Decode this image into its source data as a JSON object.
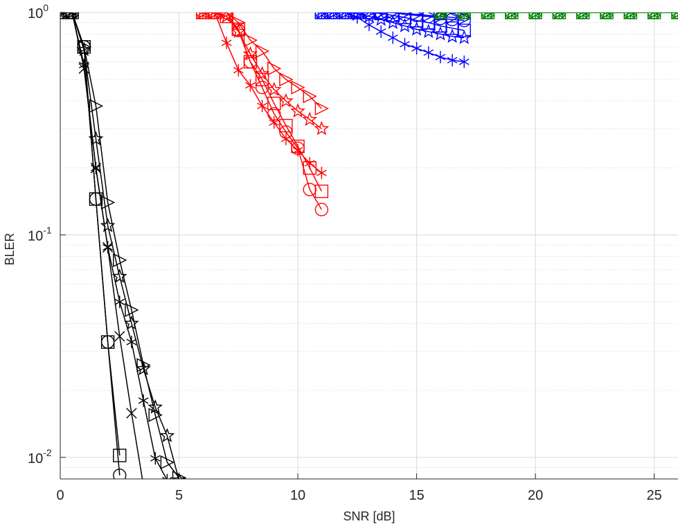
{
  "chart_data": {
    "type": "line",
    "xlabel": "SNR [dB]",
    "ylabel": "BLER",
    "xscale": "linear",
    "yscale": "log",
    "xlim": [
      0,
      26
    ],
    "ylim": [
      0.008,
      1
    ],
    "xticks": [
      0,
      5,
      10,
      15,
      20,
      25
    ],
    "xtick_labels": [
      "0",
      "5",
      "10",
      "15",
      "20",
      "25"
    ],
    "yticks": [
      0.01,
      0.1,
      1
    ],
    "ytick_labels": [
      {
        "base": "10",
        "exp": "-2"
      },
      {
        "base": "10",
        "exp": "-1"
      },
      {
        "base": "10",
        "exp": "0"
      }
    ],
    "grid": true,
    "minor_grid": true,
    "colors": {
      "black": "#000000",
      "red": "#ff0000",
      "blue": "#0000ff",
      "green": "#008000",
      "grid": "#d9d9d9"
    },
    "series": [
      {
        "color": "black",
        "marker": "circle",
        "x": [
          0,
          0.5,
          1,
          1.5,
          2,
          2.5
        ],
        "y": [
          1,
          1,
          0.7,
          0.145,
          0.033,
          0.0083
        ]
      },
      {
        "color": "black",
        "marker": "square",
        "x": [
          0,
          0.5,
          1,
          1.5,
          2,
          2.5
        ],
        "y": [
          1,
          1,
          0.7,
          0.145,
          0.033,
          0.0102
        ]
      },
      {
        "color": "black",
        "marker": "x",
        "x": [
          0,
          0.5,
          1,
          1.5,
          2,
          2.5,
          3,
          3.5
        ],
        "y": [
          1,
          1,
          0.56,
          0.2,
          0.088,
          0.035,
          0.0158,
          0.0075
        ]
      },
      {
        "color": "black",
        "marker": "asterisk",
        "x": [
          0,
          0.5,
          1,
          1.5,
          2,
          2.5,
          3,
          3.5,
          4,
          4.5
        ],
        "y": [
          1,
          1,
          0.58,
          0.2,
          0.088,
          0.05,
          0.033,
          0.018,
          0.0099,
          0.0079
        ]
      },
      {
        "color": "black",
        "marker": "triangle-right",
        "x": [
          0,
          0.5,
          1,
          1.5,
          2,
          2.5,
          3,
          3.5,
          4,
          4.5,
          5
        ],
        "y": [
          1,
          1,
          0.7,
          0.38,
          0.14,
          0.077,
          0.046,
          0.026,
          0.0155,
          0.0095,
          0.0081
        ]
      },
      {
        "color": "black",
        "marker": "star",
        "x": [
          0,
          0.5,
          1,
          1.5,
          2,
          2.5,
          3,
          3.5,
          4,
          4.5,
          5
        ],
        "y": [
          1,
          1,
          0.68,
          0.27,
          0.11,
          0.065,
          0.04,
          0.025,
          0.0168,
          0.0125,
          0.0079
        ]
      },
      {
        "color": "red",
        "marker": "circle",
        "x": [
          6,
          6.5,
          7,
          7.5,
          8,
          8.5,
          9,
          9.5,
          10,
          10.5,
          11
        ],
        "y": [
          1,
          1,
          1,
          0.83,
          0.6,
          0.46,
          0.35,
          0.29,
          0.245,
          0.16,
          0.13
        ]
      },
      {
        "color": "red",
        "marker": "square",
        "x": [
          6,
          6.5,
          7,
          7.5,
          8,
          8.5,
          9,
          9.5,
          10,
          10.5,
          11
        ],
        "y": [
          1,
          1,
          0.96,
          0.84,
          0.6,
          0.5,
          0.39,
          0.31,
          0.25,
          0.2,
          0.157
        ]
      },
      {
        "color": "red",
        "marker": "asterisk",
        "x": [
          6,
          6.5,
          7,
          7.5,
          8,
          8.5,
          9,
          9.5,
          10,
          10.5,
          11
        ],
        "y": [
          1,
          1,
          0.73,
          0.55,
          0.47,
          0.38,
          0.32,
          0.27,
          0.24,
          0.21,
          0.19
        ]
      },
      {
        "color": "red",
        "marker": "triangle-right",
        "x": [
          6,
          6.5,
          7,
          7.5,
          8,
          8.5,
          9,
          9.5,
          10,
          10.5,
          11
        ],
        "y": [
          1,
          1,
          1,
          0.9,
          0.75,
          0.67,
          0.56,
          0.5,
          0.46,
          0.42,
          0.37
        ]
      },
      {
        "color": "red",
        "marker": "star",
        "x": [
          6,
          6.5,
          7,
          7.5,
          8,
          8.5,
          9,
          9.5,
          10,
          10.5,
          11
        ],
        "y": [
          1,
          1,
          0.96,
          0.82,
          0.65,
          0.53,
          0.45,
          0.4,
          0.36,
          0.33,
          0.3
        ]
      },
      {
        "color": "blue",
        "marker": "circle",
        "x": [
          11,
          11.5,
          12,
          12.5,
          13,
          13.5,
          14,
          14.5,
          15,
          15.5,
          16,
          16.5,
          17
        ],
        "y": [
          1,
          1,
          1,
          1,
          1,
          1,
          1,
          0.98,
          0.97,
          0.96,
          0.94,
          0.93,
          0.92
        ]
      },
      {
        "color": "blue",
        "marker": "square",
        "x": [
          11,
          11.5,
          12,
          12.5,
          13,
          13.5,
          14,
          14.5,
          15,
          15.5,
          16,
          16.5,
          17
        ],
        "y": [
          1,
          1,
          1,
          1,
          1,
          0.99,
          0.97,
          0.95,
          0.92,
          0.9,
          0.87,
          0.85,
          0.83
        ]
      },
      {
        "color": "blue",
        "marker": "asterisk",
        "x": [
          11,
          11.5,
          12,
          12.5,
          13,
          13.5,
          14,
          14.5,
          15,
          15.5,
          16,
          16.5,
          17
        ],
        "y": [
          1,
          1,
          1,
          0.95,
          0.88,
          0.82,
          0.77,
          0.72,
          0.69,
          0.66,
          0.63,
          0.61,
          0.6
        ]
      },
      {
        "color": "blue",
        "marker": "triangle-right",
        "x": [
          11,
          11.5,
          12,
          12.5,
          13,
          13.5,
          14,
          14.5,
          15,
          15.5,
          16,
          16.5,
          17
        ],
        "y": [
          1,
          1,
          1,
          1,
          1,
          1,
          1,
          0.99,
          0.98,
          0.97,
          0.96,
          0.95,
          0.94
        ]
      },
      {
        "color": "blue",
        "marker": "star",
        "x": [
          11,
          11.5,
          12,
          12.5,
          13,
          13.5,
          14,
          14.5,
          15,
          15.5,
          16,
          16.5,
          17
        ],
        "y": [
          1,
          1,
          1,
          0.99,
          0.96,
          0.93,
          0.9,
          0.87,
          0.84,
          0.82,
          0.8,
          0.78,
          0.77
        ]
      },
      {
        "color": "green",
        "marker": "circle",
        "x": [
          16,
          17,
          18,
          19,
          20,
          21,
          22,
          23,
          24,
          25,
          26
        ],
        "y": [
          1,
          1,
          1,
          1,
          1,
          1,
          1,
          1,
          1,
          1,
          1
        ]
      },
      {
        "color": "green",
        "marker": "square",
        "x": [
          16,
          17,
          18,
          19,
          20,
          21,
          22,
          23,
          24,
          25,
          26
        ],
        "y": [
          1,
          1,
          1,
          1,
          1,
          1,
          1,
          1,
          1,
          1,
          1
        ]
      },
      {
        "color": "green",
        "marker": "asterisk",
        "x": [
          16,
          17,
          18,
          19,
          20,
          21,
          22,
          23,
          24,
          25,
          26
        ],
        "y": [
          1,
          1,
          1,
          1,
          1,
          1,
          1,
          1,
          1,
          1,
          1
        ]
      },
      {
        "color": "green",
        "marker": "triangle-right",
        "x": [
          16,
          17,
          18,
          19,
          20,
          21,
          22,
          23,
          24,
          25,
          26
        ],
        "y": [
          1,
          1,
          1,
          1,
          1,
          1,
          1,
          1,
          1,
          1,
          1
        ]
      },
      {
        "color": "green",
        "marker": "star",
        "x": [
          16,
          17,
          18,
          19,
          20,
          21,
          22,
          23,
          24,
          25,
          26
        ],
        "y": [
          1,
          1,
          1,
          1,
          1,
          1,
          1,
          1,
          1,
          1,
          1
        ]
      }
    ]
  }
}
